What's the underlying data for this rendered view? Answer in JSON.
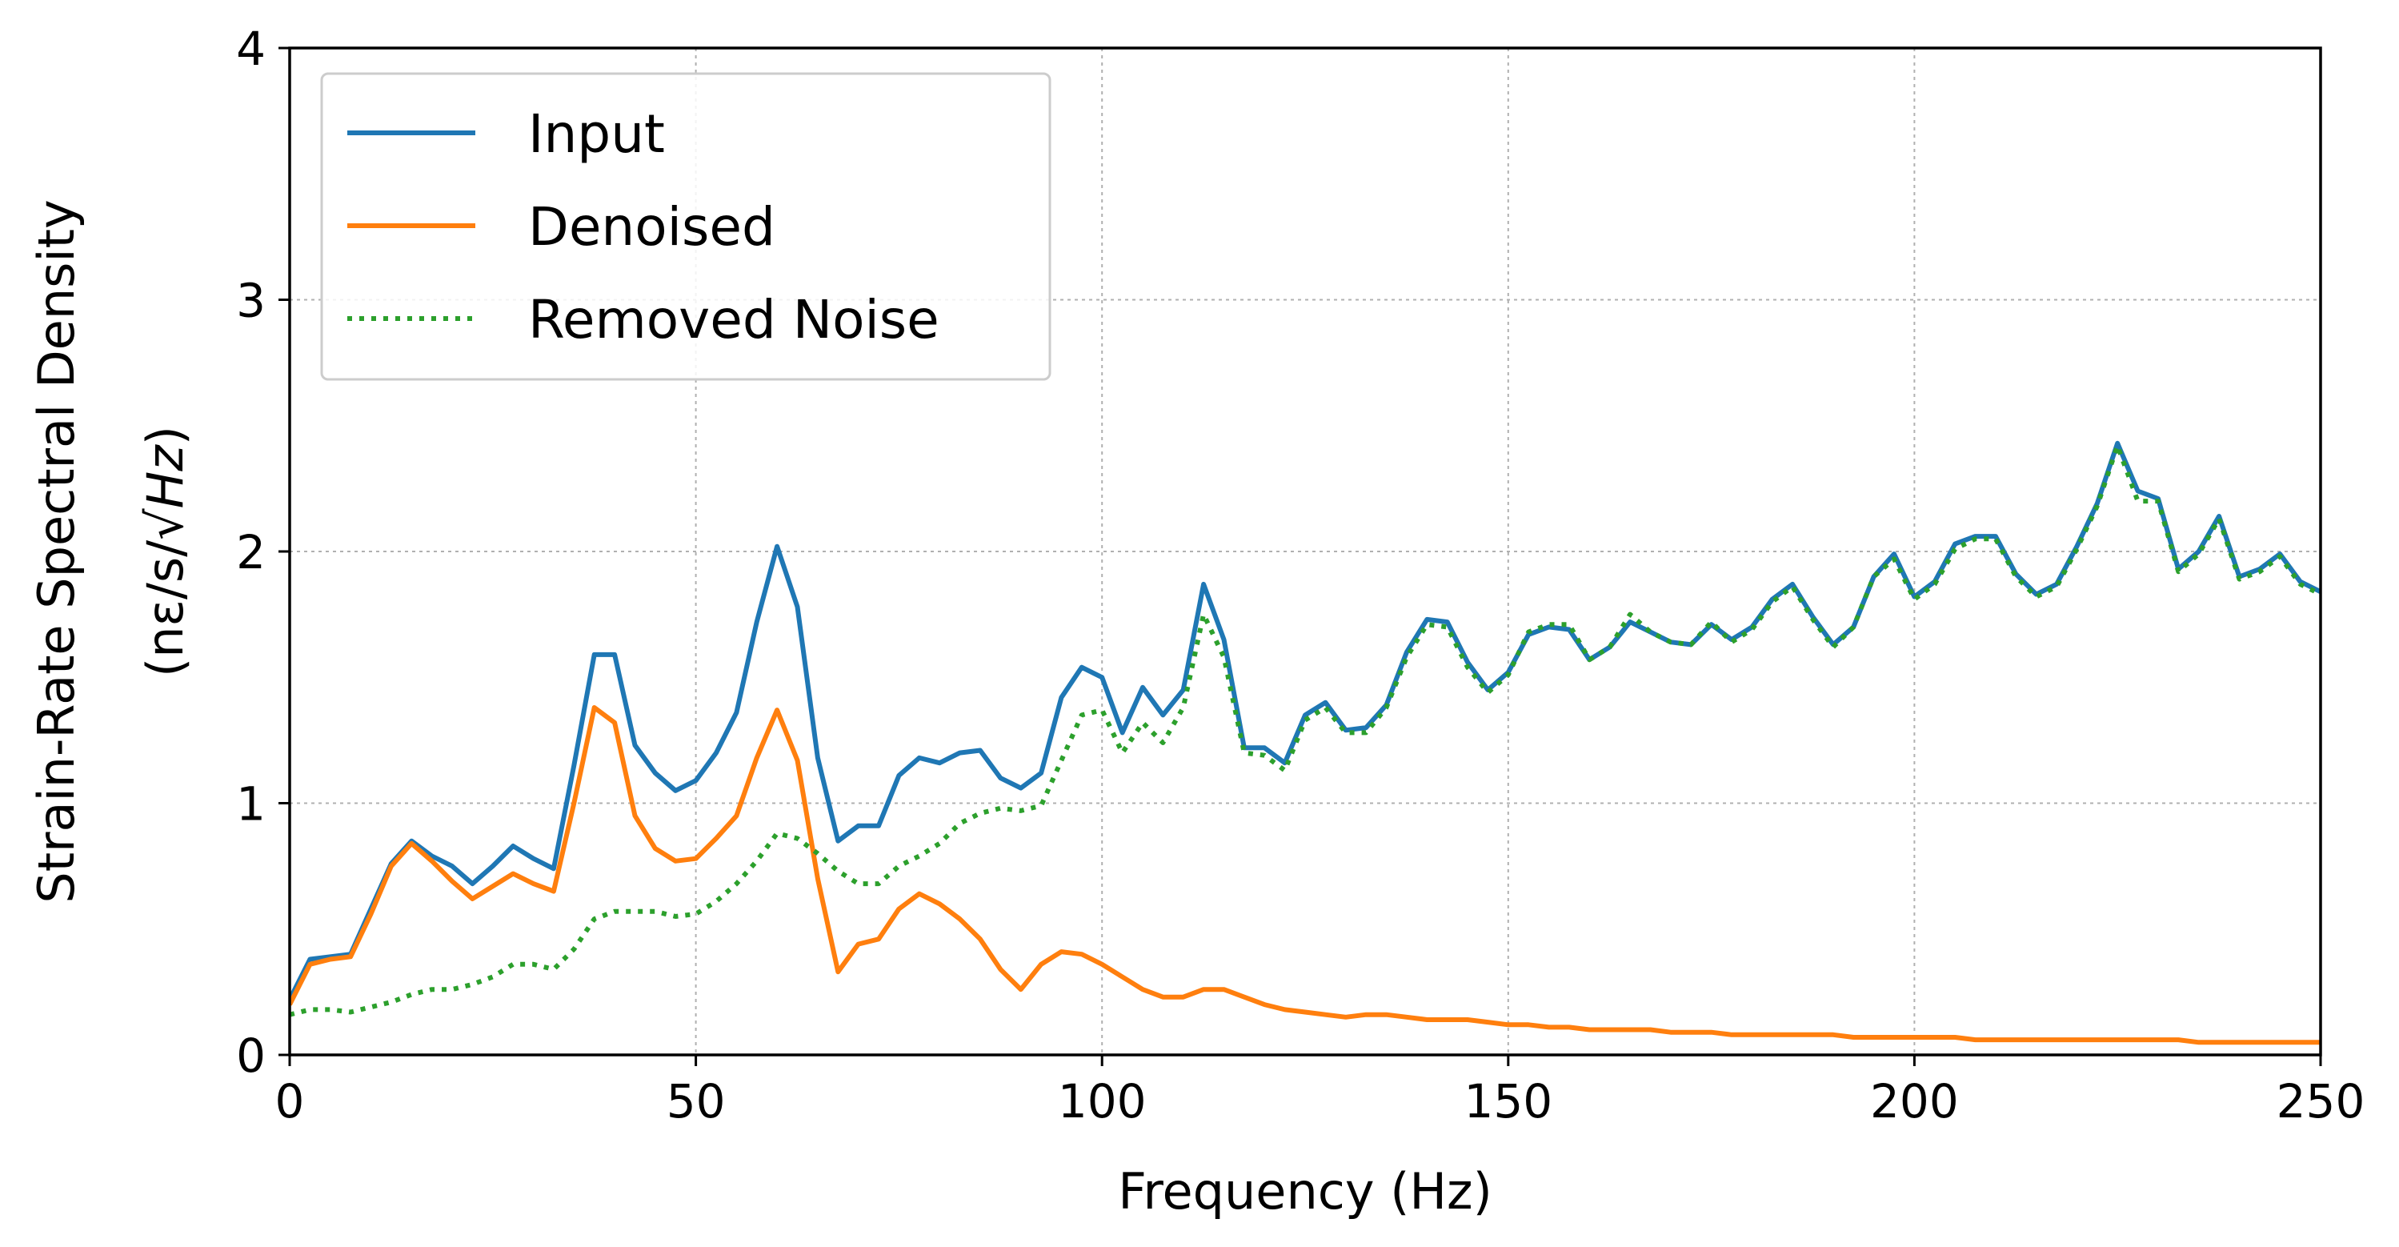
{
  "chart_data": {
    "type": "line",
    "title": "",
    "xlabel": "Frequency (Hz)",
    "ylabel_line1": "Strain-Rate Spectral Density",
    "ylabel_line2_prefix": "(nε/s/√",
    "ylabel_line2_radicand": "Hz",
    "ylabel_line2_suffix": ")",
    "xlim": [
      0,
      250
    ],
    "ylim": [
      0,
      4
    ],
    "xticks": [
      0,
      50,
      100,
      150,
      200,
      250
    ],
    "yticks": [
      0,
      1,
      2,
      3,
      4
    ],
    "grid": true,
    "legend_position": "top-left",
    "series": [
      {
        "name": "Input",
        "color": "#1f77b4",
        "style": "solid",
        "x": [
          0,
          2.5,
          5,
          7.5,
          10,
          12.5,
          15,
          17.5,
          20,
          22.5,
          25,
          27.5,
          30,
          32.5,
          35,
          37.5,
          40,
          42.5,
          45,
          47.5,
          50,
          52.5,
          55,
          57.5,
          60,
          62.5,
          65,
          67.5,
          70,
          72.5,
          75,
          77.5,
          80,
          82.5,
          85,
          87.5,
          90,
          92.5,
          95,
          97.5,
          100,
          102.5,
          105,
          107.5,
          110,
          112.5,
          115,
          117.5,
          120,
          122.5,
          125,
          127.5,
          130,
          132.5,
          135,
          137.5,
          140,
          142.5,
          145,
          147.5,
          150,
          152.5,
          155,
          157.5,
          160,
          162.5,
          165,
          167.5,
          170,
          172.5,
          175,
          177.5,
          180,
          182.5,
          185,
          187.5,
          190,
          192.5,
          195,
          197.5,
          200,
          202.5,
          205,
          207.5,
          210,
          212.5,
          215,
          217.5,
          220,
          222.5,
          225,
          227.5,
          230,
          232.5,
          235,
          237.5,
          240,
          242.5,
          245,
          247.5,
          250
        ],
        "values": [
          0.22,
          0.38,
          0.39,
          0.4,
          0.58,
          0.76,
          0.85,
          0.79,
          0.75,
          0.68,
          0.75,
          0.83,
          0.78,
          0.74,
          1.15,
          1.59,
          1.59,
          1.23,
          1.12,
          1.05,
          1.09,
          1.2,
          1.36,
          1.72,
          2.02,
          1.78,
          1.18,
          0.85,
          0.91,
          0.91,
          1.11,
          1.18,
          1.16,
          1.2,
          1.21,
          1.1,
          1.06,
          1.12,
          1.42,
          1.54,
          1.5,
          1.28,
          1.46,
          1.35,
          1.45,
          1.87,
          1.65,
          1.22,
          1.22,
          1.16,
          1.35,
          1.4,
          1.29,
          1.3,
          1.39,
          1.6,
          1.73,
          1.72,
          1.56,
          1.45,
          1.52,
          1.67,
          1.7,
          1.69,
          1.57,
          1.62,
          1.72,
          1.68,
          1.64,
          1.63,
          1.71,
          1.65,
          1.7,
          1.81,
          1.87,
          1.74,
          1.63,
          1.7,
          1.9,
          1.99,
          1.82,
          1.88,
          2.03,
          2.06,
          2.06,
          1.91,
          1.83,
          1.87,
          2.02,
          2.19,
          2.43,
          2.24,
          2.21,
          1.93,
          2.0,
          2.14,
          1.9,
          1.93,
          1.99,
          1.88,
          1.84
        ]
      },
      {
        "name": "Denoised",
        "color": "#ff7f0e",
        "style": "solid",
        "x": [
          0,
          2.5,
          5,
          7.5,
          10,
          12.5,
          15,
          17.5,
          20,
          22.5,
          25,
          27.5,
          30,
          32.5,
          35,
          37.5,
          40,
          42.5,
          45,
          47.5,
          50,
          52.5,
          55,
          57.5,
          60,
          62.5,
          65,
          67.5,
          70,
          72.5,
          75,
          77.5,
          80,
          82.5,
          85,
          87.5,
          90,
          92.5,
          95,
          97.5,
          100,
          102.5,
          105,
          107.5,
          110,
          112.5,
          115,
          117.5,
          120,
          122.5,
          125,
          127.5,
          130,
          132.5,
          135,
          137.5,
          140,
          142.5,
          145,
          147.5,
          150,
          152.5,
          155,
          157.5,
          160,
          162.5,
          165,
          167.5,
          170,
          172.5,
          175,
          177.5,
          180,
          182.5,
          185,
          187.5,
          190,
          192.5,
          195,
          197.5,
          200,
          202.5,
          205,
          207.5,
          210,
          212.5,
          215,
          217.5,
          220,
          222.5,
          225,
          227.5,
          230,
          232.5,
          235,
          237.5,
          240,
          242.5,
          245,
          247.5,
          250
        ],
        "values": [
          0.2,
          0.36,
          0.38,
          0.39,
          0.56,
          0.75,
          0.84,
          0.77,
          0.69,
          0.62,
          0.67,
          0.72,
          0.68,
          0.65,
          1.0,
          1.38,
          1.32,
          0.95,
          0.82,
          0.77,
          0.78,
          0.86,
          0.95,
          1.18,
          1.37,
          1.17,
          0.7,
          0.33,
          0.44,
          0.46,
          0.58,
          0.64,
          0.6,
          0.54,
          0.46,
          0.34,
          0.26,
          0.36,
          0.41,
          0.4,
          0.36,
          0.31,
          0.26,
          0.23,
          0.23,
          0.26,
          0.26,
          0.23,
          0.2,
          0.18,
          0.17,
          0.16,
          0.15,
          0.16,
          0.16,
          0.15,
          0.14,
          0.14,
          0.14,
          0.13,
          0.12,
          0.12,
          0.11,
          0.11,
          0.1,
          0.1,
          0.1,
          0.1,
          0.09,
          0.09,
          0.09,
          0.08,
          0.08,
          0.08,
          0.08,
          0.08,
          0.08,
          0.07,
          0.07,
          0.07,
          0.07,
          0.07,
          0.07,
          0.06,
          0.06,
          0.06,
          0.06,
          0.06,
          0.06,
          0.06,
          0.06,
          0.06,
          0.06,
          0.06,
          0.05,
          0.05,
          0.05,
          0.05,
          0.05,
          0.05,
          0.05
        ]
      },
      {
        "name": "Removed Noise",
        "color": "#2ca02c",
        "style": "dotted",
        "x": [
          0,
          2.5,
          5,
          7.5,
          10,
          12.5,
          15,
          17.5,
          20,
          22.5,
          25,
          27.5,
          30,
          32.5,
          35,
          37.5,
          40,
          42.5,
          45,
          47.5,
          50,
          52.5,
          55,
          57.5,
          60,
          62.5,
          65,
          67.5,
          70,
          72.5,
          75,
          77.5,
          80,
          82.5,
          85,
          87.5,
          90,
          92.5,
          95,
          97.5,
          100,
          102.5,
          105,
          107.5,
          110,
          112.5,
          115,
          117.5,
          120,
          122.5,
          125,
          127.5,
          130,
          132.5,
          135,
          137.5,
          140,
          142.5,
          145,
          147.5,
          150,
          152.5,
          155,
          157.5,
          160,
          162.5,
          165,
          167.5,
          170,
          172.5,
          175,
          177.5,
          180,
          182.5,
          185,
          187.5,
          190,
          192.5,
          195,
          197.5,
          200,
          202.5,
          205,
          207.5,
          210,
          212.5,
          215,
          217.5,
          220,
          222.5,
          225,
          227.5,
          230,
          232.5,
          235,
          237.5,
          240,
          242.5,
          245,
          247.5,
          250
        ],
        "values": [
          0.16,
          0.18,
          0.18,
          0.17,
          0.19,
          0.21,
          0.24,
          0.26,
          0.26,
          0.28,
          0.31,
          0.36,
          0.36,
          0.34,
          0.42,
          0.54,
          0.57,
          0.57,
          0.57,
          0.55,
          0.56,
          0.61,
          0.68,
          0.77,
          0.88,
          0.86,
          0.8,
          0.73,
          0.68,
          0.68,
          0.75,
          0.79,
          0.84,
          0.92,
          0.96,
          0.98,
          0.97,
          0.99,
          1.17,
          1.35,
          1.37,
          1.2,
          1.32,
          1.24,
          1.38,
          1.75,
          1.58,
          1.2,
          1.19,
          1.13,
          1.33,
          1.38,
          1.28,
          1.28,
          1.38,
          1.58,
          1.71,
          1.7,
          1.54,
          1.44,
          1.51,
          1.68,
          1.71,
          1.71,
          1.57,
          1.62,
          1.75,
          1.68,
          1.64,
          1.63,
          1.72,
          1.64,
          1.69,
          1.8,
          1.86,
          1.73,
          1.62,
          1.7,
          1.9,
          1.97,
          1.81,
          1.87,
          2.01,
          2.05,
          2.05,
          1.9,
          1.82,
          1.86,
          2.01,
          2.18,
          2.42,
          2.2,
          2.2,
          1.92,
          1.99,
          2.13,
          1.89,
          1.92,
          1.98,
          1.87,
          1.83
        ]
      }
    ]
  }
}
